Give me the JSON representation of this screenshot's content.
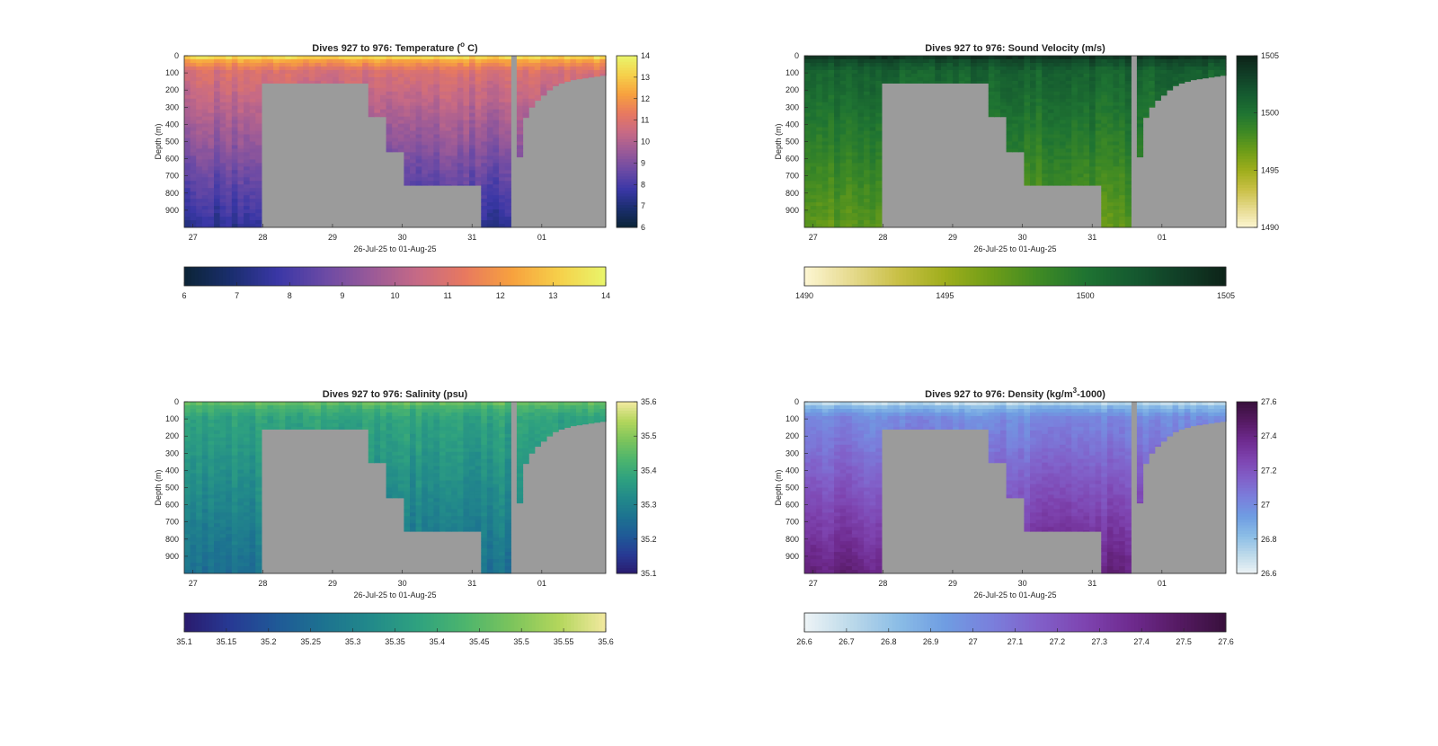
{
  "figure": {
    "background": "#ffffff",
    "nodata_color": "#9b9b9b"
  },
  "chart_data": [
    {
      "type": "heatmap",
      "title_parts": [
        "Dives 927 to 976: Temperature (",
        "o",
        " C)"
      ],
      "xlabel": "26-Jul-25 to 01-Aug-25",
      "ylabel": "Depth (m)",
      "x_tick_labels": [
        "27",
        "28",
        "29",
        "30",
        "31",
        "01"
      ],
      "y_tick_labels": [
        "0",
        "100",
        "200",
        "300",
        "400",
        "500",
        "600",
        "700",
        "800",
        "900"
      ],
      "xlim": [
        "2025-07-26T21:00",
        "2025-08-01T22:00"
      ],
      "ylim": [
        0,
        1000
      ],
      "variable": "Temperature",
      "units": "°C",
      "clim": [
        6,
        14
      ],
      "colorbar_ticks": [
        "6",
        "7",
        "8",
        "9",
        "10",
        "11",
        "12",
        "13",
        "14"
      ],
      "horizontal_colorbar_ticks": [
        "6",
        "7",
        "8",
        "9",
        "10",
        "11",
        "12",
        "13",
        "14"
      ],
      "colormap": [
        "#0b2436",
        "#1a2e6e",
        "#3a37a6",
        "#6b4aa5",
        "#9a5a98",
        "#c76a85",
        "#e8795f",
        "#f7a13e",
        "#f6d04a",
        "#e9f56b"
      ],
      "surface_value": 13.2,
      "deep_value": 7.4,
      "max_depth_profile_m": [
        1000,
        1000,
        1000,
        1000,
        1000,
        1000,
        1000,
        1000,
        1000,
        1000,
        1000,
        1000,
        1000,
        160,
        160,
        160,
        160,
        160,
        160,
        160,
        160,
        160,
        160,
        160,
        160,
        160,
        160,
        160,
        160,
        160,
        160,
        355,
        355,
        355,
        560,
        560,
        560,
        755,
        755,
        755,
        755,
        755,
        755,
        755,
        755,
        755,
        755,
        755,
        755,
        755,
        1000,
        1000,
        1000,
        1000,
        1000,
        0,
        590,
        360,
        300,
        260,
        230,
        200,
        175,
        160,
        150,
        140,
        135,
        130,
        125,
        120,
        115
      ]
    },
    {
      "type": "heatmap",
      "title_parts": [
        "Dives 927 to 976: Sound Velocity (m/s)",
        "",
        ""
      ],
      "xlabel": "26-Jul-25 to 01-Aug-25",
      "ylabel": "Depth (m)",
      "x_tick_labels": [
        "27",
        "28",
        "29",
        "30",
        "31",
        "01"
      ],
      "y_tick_labels": [
        "0",
        "100",
        "200",
        "300",
        "400",
        "500",
        "600",
        "700",
        "800",
        "900"
      ],
      "xlim": [
        "2025-07-26T21:00",
        "2025-08-01T22:00"
      ],
      "ylim": [
        0,
        1000
      ],
      "variable": "Sound Velocity",
      "units": "m/s",
      "clim": [
        1490,
        1505
      ],
      "colorbar_ticks": [
        "1490",
        "1495",
        "1500",
        "1505"
      ],
      "horizontal_colorbar_ticks": [
        "1490",
        "1495",
        "1500",
        "1505"
      ],
      "colormap": [
        "#fdf6d3",
        "#e6da8e",
        "#c9c046",
        "#9fae1c",
        "#6e9d18",
        "#3f8a24",
        "#1f7432",
        "#155a30",
        "#113f27",
        "#0d2318"
      ],
      "surface_value": 1503.8,
      "deep_value": 1497.2,
      "max_depth_profile_m": [
        1000,
        1000,
        1000,
        1000,
        1000,
        1000,
        1000,
        1000,
        1000,
        1000,
        1000,
        1000,
        1000,
        160,
        160,
        160,
        160,
        160,
        160,
        160,
        160,
        160,
        160,
        160,
        160,
        160,
        160,
        160,
        160,
        160,
        160,
        355,
        355,
        355,
        560,
        560,
        560,
        755,
        755,
        755,
        755,
        755,
        755,
        755,
        755,
        755,
        755,
        755,
        755,
        755,
        1000,
        1000,
        1000,
        1000,
        1000,
        0,
        590,
        360,
        300,
        260,
        230,
        200,
        175,
        160,
        150,
        140,
        135,
        130,
        125,
        120,
        115
      ]
    },
    {
      "type": "heatmap",
      "title_parts": [
        "Dives 927 to 976: Salinity (psu)",
        "",
        ""
      ],
      "xlabel": "26-Jul-25 to 01-Aug-25",
      "ylabel": "Depth (m)",
      "x_tick_labels": [
        "27",
        "28",
        "29",
        "30",
        "31",
        "01"
      ],
      "y_tick_labels": [
        "0",
        "100",
        "200",
        "300",
        "400",
        "500",
        "600",
        "700",
        "800",
        "900"
      ],
      "xlim": [
        "2025-07-26T21:00",
        "2025-08-01T22:00"
      ],
      "ylim": [
        0,
        1000
      ],
      "variable": "Salinity",
      "units": "psu",
      "clim": [
        35.1,
        35.6
      ],
      "colorbar_ticks": [
        "35.1",
        "35.2",
        "35.3",
        "35.4",
        "35.5",
        "35.6"
      ],
      "horizontal_colorbar_ticks": [
        "35.1",
        "35.15",
        "35.2",
        "35.25",
        "35.3",
        "35.35",
        "35.4",
        "35.45",
        "35.5",
        "35.55",
        "35.6"
      ],
      "colormap": [
        "#2a1b6e",
        "#273a94",
        "#1f5a97",
        "#1d7390",
        "#228a8a",
        "#2fa27f",
        "#4db56d",
        "#7cc45c",
        "#b3d65c",
        "#f2e9a0"
      ],
      "surface_value": 35.46,
      "deep_value": 35.26,
      "max_depth_profile_m": [
        1000,
        1000,
        1000,
        1000,
        1000,
        1000,
        1000,
        1000,
        1000,
        1000,
        1000,
        1000,
        1000,
        160,
        160,
        160,
        160,
        160,
        160,
        160,
        160,
        160,
        160,
        160,
        160,
        160,
        160,
        160,
        160,
        160,
        160,
        355,
        355,
        355,
        560,
        560,
        560,
        755,
        755,
        755,
        755,
        755,
        755,
        755,
        755,
        755,
        755,
        755,
        755,
        755,
        1000,
        1000,
        1000,
        1000,
        1000,
        0,
        590,
        360,
        300,
        260,
        230,
        200,
        175,
        160,
        150,
        140,
        135,
        130,
        125,
        120,
        115
      ]
    },
    {
      "type": "heatmap",
      "title_parts": [
        "Dives 927 to 976: Density (kg/m",
        "3",
        "-1000)"
      ],
      "xlabel": "26-Jul-25 to 01-Aug-25",
      "ylabel": "Depth (m)",
      "x_tick_labels": [
        "27",
        "28",
        "29",
        "30",
        "31",
        "01"
      ],
      "y_tick_labels": [
        "0",
        "100",
        "200",
        "300",
        "400",
        "500",
        "600",
        "700",
        "800",
        "900"
      ],
      "xlim": [
        "2025-07-26T21:00",
        "2025-08-01T22:00"
      ],
      "ylim": [
        0,
        1000
      ],
      "variable": "Density",
      "units": "kg/m3-1000",
      "clim": [
        26.6,
        27.6
      ],
      "colorbar_ticks": [
        "26.6",
        "26.8",
        "27",
        "27.2",
        "27.4",
        "27.6"
      ],
      "horizontal_colorbar_ticks": [
        "26.6",
        "26.7",
        "26.8",
        "26.9",
        "27",
        "27.1",
        "27.2",
        "27.3",
        "27.4",
        "27.5",
        "27.6"
      ],
      "colormap": [
        "#eef4f6",
        "#bcd9ea",
        "#8bbde6",
        "#6f9de2",
        "#7a7fdc",
        "#8160c9",
        "#7e44b0",
        "#6e2a8e",
        "#551a62",
        "#38103c"
      ],
      "surface_value": 26.72,
      "deep_value": 27.42,
      "max_depth_profile_m": [
        1000,
        1000,
        1000,
        1000,
        1000,
        1000,
        1000,
        1000,
        1000,
        1000,
        1000,
        1000,
        1000,
        160,
        160,
        160,
        160,
        160,
        160,
        160,
        160,
        160,
        160,
        160,
        160,
        160,
        160,
        160,
        160,
        160,
        160,
        355,
        355,
        355,
        560,
        560,
        560,
        755,
        755,
        755,
        755,
        755,
        755,
        755,
        755,
        755,
        755,
        755,
        755,
        755,
        1000,
        1000,
        1000,
        1000,
        1000,
        0,
        590,
        360,
        300,
        260,
        230,
        200,
        175,
        160,
        150,
        140,
        135,
        130,
        125,
        120,
        115
      ]
    }
  ]
}
